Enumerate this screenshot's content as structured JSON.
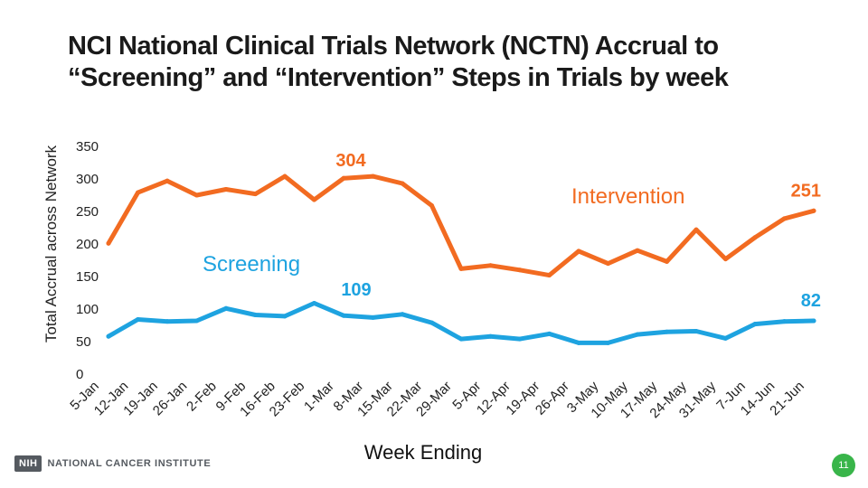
{
  "title": "NCI National Clinical Trials Network (NCTN) Accrual to “Screening” and “Intervention” Steps in Trials by week",
  "footer": {
    "logo_badge": "NIH",
    "logo_text": "NATIONAL CANCER INSTITUTE",
    "page_number": "11"
  },
  "chart_data": {
    "type": "line",
    "ylabel": "Total Accrual across Network",
    "xlabel": "Week Ending",
    "ylim": [
      0,
      350
    ],
    "yticks": [
      0,
      50,
      100,
      150,
      200,
      250,
      300,
      350
    ],
    "categories": [
      "5-Jan",
      "12-Jan",
      "19-Jan",
      "26-Jan",
      "2-Feb",
      "9-Feb",
      "16-Feb",
      "23-Feb",
      "1-Mar",
      "8-Mar",
      "15-Mar",
      "22-Mar",
      "29-Mar",
      "5-Apr",
      "12-Apr",
      "19-Apr",
      "26-Apr",
      "3-May",
      "10-May",
      "17-May",
      "24-May",
      "31-May",
      "7-Jun",
      "14-Jun",
      "21-Jun"
    ],
    "series": [
      {
        "name": "Intervention",
        "color": "#f26b21",
        "values": [
          201,
          279,
          297,
          275,
          284,
          277,
          304,
          268,
          301,
          304,
          293,
          259,
          162,
          167,
          160,
          152,
          189,
          170,
          190,
          173,
          222,
          177,
          210,
          239,
          251
        ],
        "annotations": [
          {
            "index": 9,
            "text": "304"
          },
          {
            "index": 24,
            "text": "251"
          }
        ]
      },
      {
        "name": "Screening",
        "color": "#1ea3e0",
        "values": [
          58,
          84,
          81,
          82,
          101,
          91,
          89,
          109,
          90,
          87,
          92,
          79,
          54,
          58,
          54,
          62,
          48,
          48,
          61,
          65,
          66,
          55,
          77,
          81,
          82
        ],
        "annotations": [
          {
            "index": 7,
            "text": "109"
          },
          {
            "index": 24,
            "text": "82"
          }
        ]
      }
    ],
    "grid": false
  }
}
